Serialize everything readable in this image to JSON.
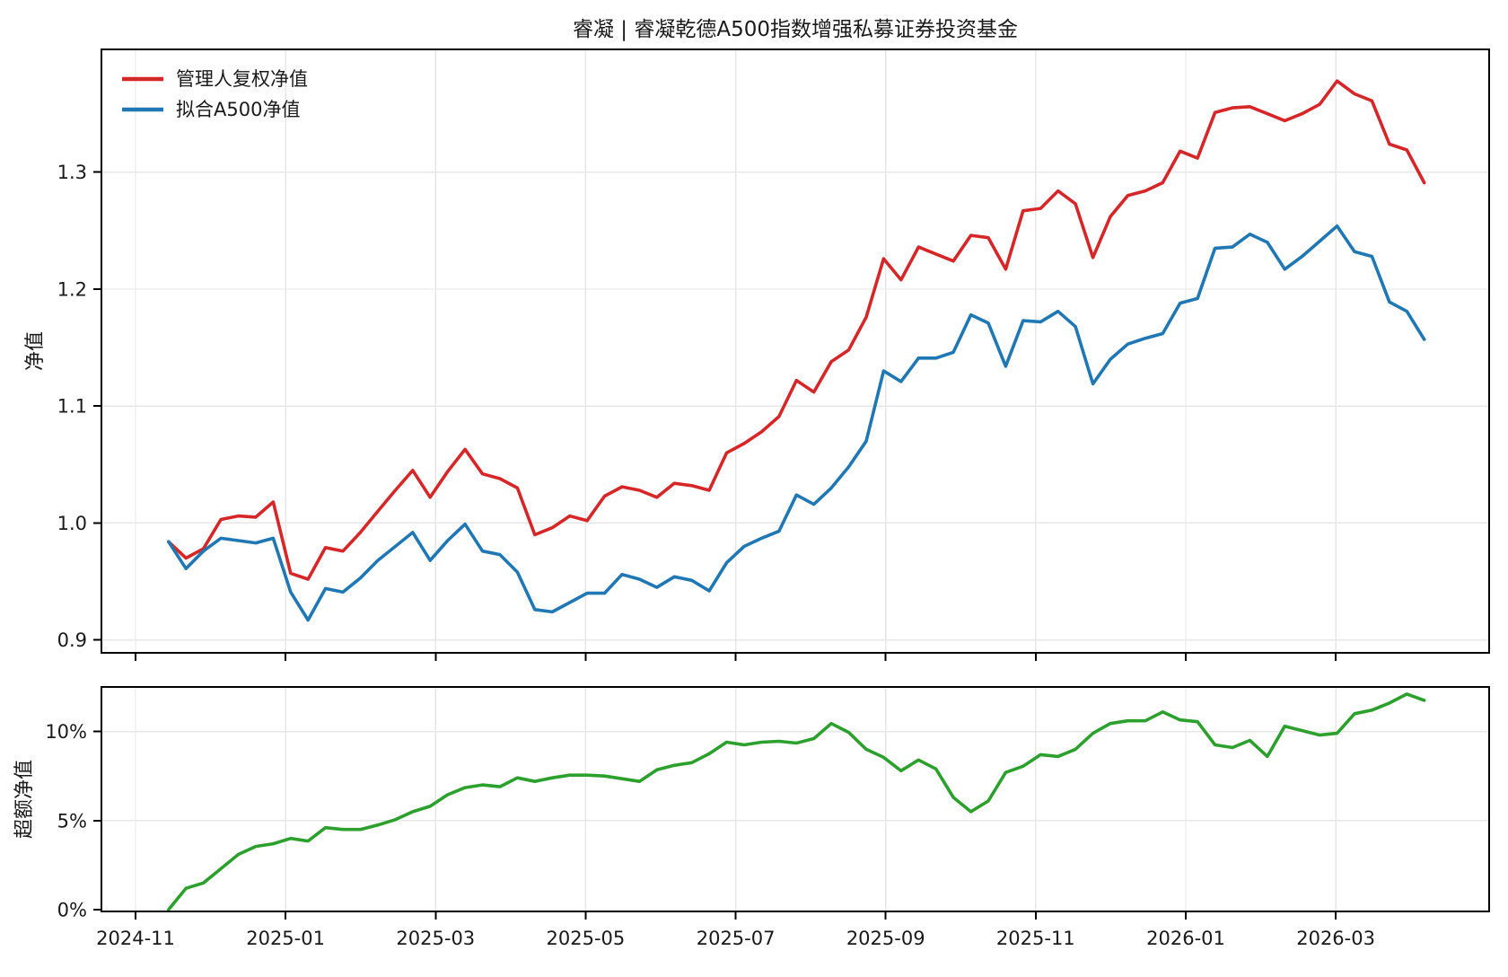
{
  "title": "睿凝 | 睿凝乾德A500指数增强私募证券投资基金",
  "chart_data": {
    "type": "line",
    "grid": true,
    "legend_position": "upper-left",
    "x_axis": {
      "tick_labels": [
        "2024-11",
        "2025-01",
        "2025-03",
        "2025-05",
        "2025-07",
        "2025-09",
        "2025-11",
        "2026-01",
        "2026-03"
      ],
      "tick_months": [
        0,
        2,
        4,
        6,
        8,
        10,
        12,
        14,
        16
      ],
      "series_start_month": 0.44,
      "series_end_month": 17.18,
      "frequency": "weekly"
    },
    "panels": [
      {
        "ylabel": "净值",
        "ylim": [
          0.889,
          1.405
        ],
        "yticks": [
          0.9,
          1.0,
          1.1,
          1.2,
          1.3
        ],
        "ytick_labels": [
          "0.9",
          "1.0",
          "1.1",
          "1.2",
          "1.3"
        ],
        "series": [
          {
            "name": "管理人复权净值",
            "color": "#d62728",
            "values": [
              0.984,
              0.97,
              0.978,
              1.003,
              1.006,
              1.005,
              1.018,
              0.957,
              0.952,
              0.979,
              0.976,
              0.992,
              1.01,
              1.028,
              1.045,
              1.022,
              1.044,
              1.063,
              1.042,
              1.038,
              1.03,
              0.99,
              0.996,
              1.006,
              1.002,
              1.023,
              1.031,
              1.028,
              1.022,
              1.034,
              1.032,
              1.028,
              1.06,
              1.068,
              1.078,
              1.091,
              1.122,
              1.112,
              1.138,
              1.148,
              1.176,
              1.226,
              1.208,
              1.236,
              1.23,
              1.224,
              1.246,
              1.244,
              1.217,
              1.267,
              1.269,
              1.284,
              1.273,
              1.227,
              1.262,
              1.28,
              1.284,
              1.291,
              1.318,
              1.312,
              1.351,
              1.355,
              1.356,
              1.35,
              1.344,
              1.35,
              1.358,
              1.378,
              1.367,
              1.361,
              1.324,
              1.319,
              1.291
            ]
          },
          {
            "name": "拟合A500净值",
            "color": "#1f77b4",
            "values": [
              0.984,
              0.961,
              0.976,
              0.987,
              0.985,
              0.983,
              0.987,
              0.941,
              0.917,
              0.944,
              0.941,
              0.953,
              0.968,
              0.98,
              0.992,
              0.968,
              0.985,
              0.999,
              0.976,
              0.973,
              0.958,
              0.926,
              0.924,
              0.932,
              0.94,
              0.94,
              0.956,
              0.952,
              0.945,
              0.954,
              0.951,
              0.942,
              0.966,
              0.98,
              0.987,
              0.993,
              1.024,
              1.016,
              1.03,
              1.048,
              1.07,
              1.13,
              1.121,
              1.141,
              1.141,
              1.146,
              1.178,
              1.171,
              1.134,
              1.173,
              1.172,
              1.181,
              1.168,
              1.119,
              1.14,
              1.153,
              1.158,
              1.162,
              1.188,
              1.192,
              1.235,
              1.236,
              1.247,
              1.24,
              1.217,
              1.228,
              1.241,
              1.254,
              1.232,
              1.228,
              1.189,
              1.181,
              1.157
            ]
          }
        ]
      },
      {
        "ylabel": "超额净值",
        "ylim": [
          -0.1,
          12.5
        ],
        "yticks": [
          0,
          5,
          10
        ],
        "ytick_labels": [
          "0%",
          "5%",
          "10%"
        ],
        "series": [
          {
            "name": "超额净值",
            "color": "#2ca02c",
            "values": [
              0.0,
              1.2,
              1.5,
              2.3,
              3.1,
              3.55,
              3.7,
              4.0,
              3.85,
              4.6,
              4.5,
              4.5,
              4.75,
              5.05,
              5.5,
              5.8,
              6.45,
              6.85,
              7.0,
              6.9,
              7.4,
              7.2,
              7.4,
              7.55,
              7.55,
              7.5,
              7.35,
              7.2,
              7.85,
              8.1,
              8.25,
              8.75,
              9.4,
              9.25,
              9.4,
              9.45,
              9.35,
              9.6,
              10.45,
              9.95,
              9.0,
              8.55,
              7.8,
              8.4,
              7.9,
              6.3,
              5.5,
              6.1,
              7.7,
              8.05,
              8.7,
              8.6,
              9.0,
              9.9,
              10.45,
              10.6,
              10.6,
              11.1,
              10.65,
              10.55,
              9.25,
              9.1,
              9.5,
              8.6,
              10.3,
              10.05,
              9.8,
              9.9,
              11.0,
              11.2,
              11.6,
              12.1,
              11.75
            ]
          }
        ]
      }
    ],
    "colors": {
      "grid": "#e7e7e7",
      "spine": "#000000",
      "background": "#ffffff"
    }
  }
}
